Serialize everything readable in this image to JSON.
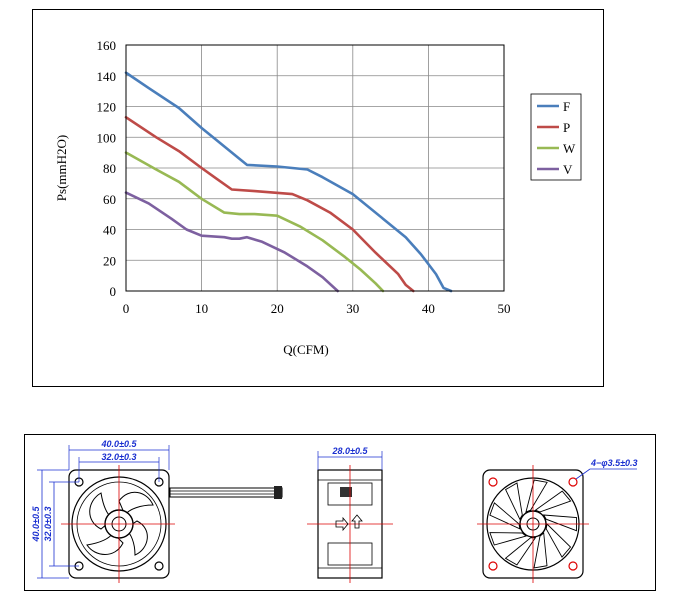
{
  "chart_data": {
    "type": "line",
    "title": "",
    "xlabel": "Q(CFM)",
    "ylabel": "Ps(mmH2O)",
    "xlim": [
      0,
      50
    ],
    "ylim": [
      0,
      160
    ],
    "x_ticks": [
      0,
      10,
      20,
      30,
      40,
      50
    ],
    "y_ticks": [
      0,
      20,
      40,
      60,
      80,
      100,
      120,
      140,
      160
    ],
    "grid": true,
    "legend_position": "right",
    "series": [
      {
        "name": "F",
        "color": "#4a7ebb",
        "points": [
          [
            0,
            142
          ],
          [
            3,
            132
          ],
          [
            7,
            119
          ],
          [
            10,
            106
          ],
          [
            12,
            98
          ],
          [
            15,
            86
          ],
          [
            16,
            82
          ],
          [
            20,
            81
          ],
          [
            24,
            79
          ],
          [
            26,
            74
          ],
          [
            30,
            63
          ],
          [
            34,
            47
          ],
          [
            37,
            35
          ],
          [
            39,
            24
          ],
          [
            41,
            11
          ],
          [
            42,
            2
          ],
          [
            43,
            0
          ]
        ]
      },
      {
        "name": "P",
        "color": "#be4b48",
        "points": [
          [
            0,
            113
          ],
          [
            4,
            100
          ],
          [
            7,
            91
          ],
          [
            10,
            80
          ],
          [
            12,
            73
          ],
          [
            14,
            66
          ],
          [
            17,
            65
          ],
          [
            22,
            63
          ],
          [
            24,
            59
          ],
          [
            27,
            51
          ],
          [
            30,
            40
          ],
          [
            33,
            25
          ],
          [
            36,
            11
          ],
          [
            37,
            4
          ],
          [
            38,
            0
          ]
        ]
      },
      {
        "name": "W",
        "color": "#98b954",
        "points": [
          [
            0,
            90
          ],
          [
            4,
            79
          ],
          [
            7,
            71
          ],
          [
            10,
            60
          ],
          [
            13,
            51
          ],
          [
            15,
            50
          ],
          [
            17,
            50
          ],
          [
            20,
            49
          ],
          [
            23,
            42
          ],
          [
            26,
            33
          ],
          [
            29,
            22
          ],
          [
            31,
            14
          ],
          [
            33,
            5
          ],
          [
            34,
            0
          ]
        ]
      },
      {
        "name": "V",
        "color": "#7d60a0",
        "points": [
          [
            0,
            64
          ],
          [
            3,
            57
          ],
          [
            6,
            47
          ],
          [
            8,
            40
          ],
          [
            10,
            36
          ],
          [
            13,
            35
          ],
          [
            14,
            34
          ],
          [
            15,
            34
          ],
          [
            16,
            35
          ],
          [
            18,
            32
          ],
          [
            21,
            25
          ],
          [
            24,
            16
          ],
          [
            26,
            9
          ],
          [
            28,
            0
          ]
        ]
      }
    ]
  },
  "drawings": {
    "front": {
      "dim_width_outer": "40.0±0.5",
      "dim_width_inner": "32.0±0.3",
      "dim_height_outer": "40.0±0.5",
      "dim_height_inner": "32.0±0.3"
    },
    "side": {
      "dim_depth": "28.0±0.5"
    },
    "back": {
      "dim_holes": "4−φ3.5±0.3"
    }
  }
}
